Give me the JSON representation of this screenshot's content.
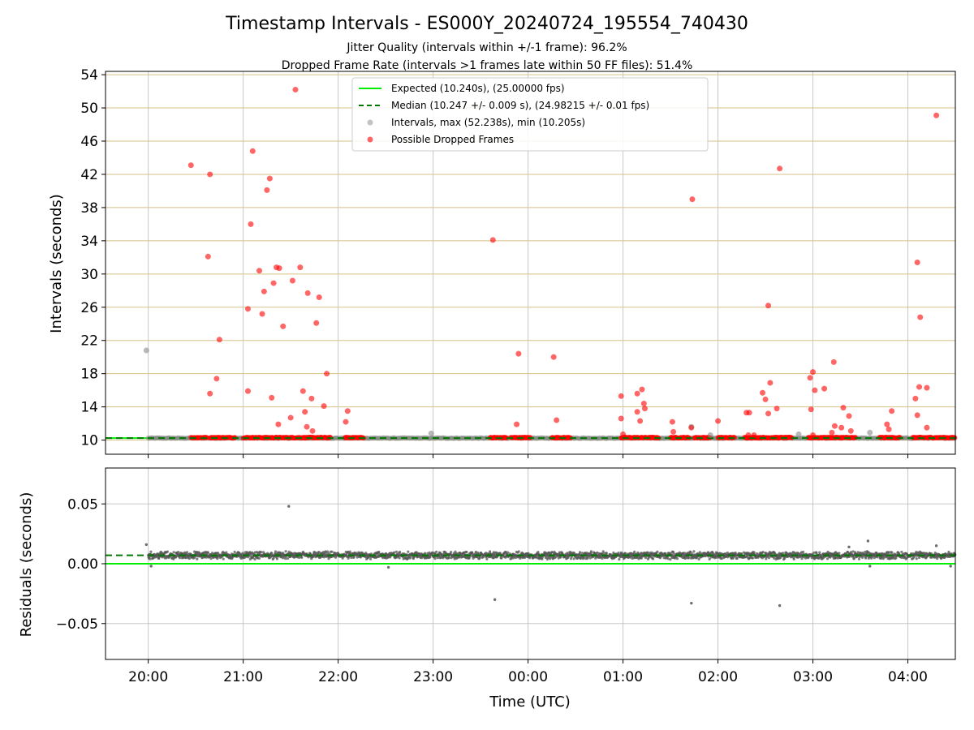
{
  "chart_data": {
    "type": "scatter",
    "title": "Timestamp Intervals - ES000Y_20240724_195554_740430",
    "subtitles": [
      "Jitter Quality (intervals within +/-1 frame): 96.2%",
      "Dropped Frame Rate (intervals >1 frames late within 50 FF files): 51.4%"
    ],
    "xlabel": "Time (UTC)",
    "x_ticks": [
      "20:00",
      "21:00",
      "22:00",
      "23:00",
      "00:00",
      "01:00",
      "02:00",
      "03:00",
      "04:00"
    ],
    "x_range_hours": [
      19.55,
      28.5
    ],
    "grid": true,
    "legend_position": "top-center",
    "panels": [
      {
        "name": "intervals",
        "ylabel": "Intervals (seconds)",
        "y_ticks": [
          "10",
          "14",
          "18",
          "22",
          "26",
          "30",
          "34",
          "38",
          "42",
          "46",
          "50",
          "54"
        ],
        "ylim": [
          8.3,
          54.4
        ],
        "legend": [
          {
            "label": "Expected (10.240s), (25.00000 fps)",
            "kind": "line",
            "color": "#00ee00",
            "style": "solid"
          },
          {
            "label": "Median (10.247 +/- 0.009 s), (24.98215 +/- 0.01 fps)",
            "kind": "line",
            "color": "#007700",
            "style": "dashed"
          },
          {
            "label": "Intervals, max (52.238s), min (10.205s)",
            "kind": "marker",
            "color": "#999999"
          },
          {
            "label": "Possible Dropped Frames",
            "kind": "marker",
            "color": "#ff0000"
          }
        ],
        "expected_value": 10.24,
        "median_value": 10.247,
        "baseline_segments": [
          [
            20.0,
            28.5
          ]
        ],
        "dropped_bands": [
          [
            20.45,
            20.62
          ],
          [
            20.65,
            20.92
          ],
          [
            21.0,
            21.92
          ],
          [
            22.07,
            22.27
          ],
          [
            23.6,
            23.78
          ],
          [
            23.82,
            24.03
          ],
          [
            24.25,
            24.45
          ],
          [
            24.98,
            25.38
          ],
          [
            25.5,
            25.7
          ],
          [
            25.75,
            25.92
          ],
          [
            26.0,
            26.18
          ],
          [
            26.28,
            26.78
          ],
          [
            26.95,
            27.45
          ],
          [
            27.7,
            27.92
          ],
          [
            28.05,
            28.5
          ]
        ],
        "gray_points": [
          [
            19.98,
            20.8
          ],
          [
            22.98,
            10.8
          ],
          [
            25.72,
            11.6
          ],
          [
            25.92,
            10.6
          ],
          [
            26.85,
            10.7
          ],
          [
            27.6,
            10.9
          ]
        ],
        "dropped_points": [
          [
            20.45,
            43.1
          ],
          [
            20.65,
            42.0
          ],
          [
            20.63,
            32.1
          ],
          [
            20.65,
            15.6
          ],
          [
            20.72,
            17.4
          ],
          [
            20.75,
            22.1
          ],
          [
            21.05,
            25.8
          ],
          [
            21.05,
            15.9
          ],
          [
            21.08,
            36.0
          ],
          [
            21.1,
            44.8
          ],
          [
            21.17,
            30.4
          ],
          [
            21.2,
            25.2
          ],
          [
            21.22,
            27.9
          ],
          [
            21.25,
            40.1
          ],
          [
            21.28,
            41.5
          ],
          [
            21.3,
            15.1
          ],
          [
            21.32,
            28.9
          ],
          [
            21.35,
            30.8
          ],
          [
            21.37,
            11.9
          ],
          [
            21.38,
            30.7
          ],
          [
            21.42,
            23.7
          ],
          [
            21.5,
            12.7
          ],
          [
            21.52,
            29.2
          ],
          [
            21.55,
            52.2
          ],
          [
            21.6,
            30.8
          ],
          [
            21.63,
            15.9
          ],
          [
            21.65,
            13.4
          ],
          [
            21.67,
            11.6
          ],
          [
            21.68,
            27.7
          ],
          [
            21.72,
            15.0
          ],
          [
            21.73,
            11.1
          ],
          [
            21.77,
            24.1
          ],
          [
            21.8,
            27.2
          ],
          [
            21.85,
            14.1
          ],
          [
            21.88,
            18.0
          ],
          [
            22.08,
            12.2
          ],
          [
            22.1,
            13.5
          ],
          [
            23.63,
            34.1
          ],
          [
            23.88,
            11.9
          ],
          [
            23.9,
            20.4
          ],
          [
            24.27,
            20.0
          ],
          [
            24.3,
            12.4
          ],
          [
            24.98,
            15.3
          ],
          [
            24.98,
            12.6
          ],
          [
            25.0,
            10.7
          ],
          [
            25.15,
            15.6
          ],
          [
            25.15,
            13.4
          ],
          [
            25.18,
            12.3
          ],
          [
            25.2,
            16.1
          ],
          [
            25.22,
            14.4
          ],
          [
            25.23,
            13.8
          ],
          [
            25.52,
            12.2
          ],
          [
            25.53,
            11.0
          ],
          [
            25.72,
            11.5
          ],
          [
            25.73,
            39.0
          ],
          [
            26.0,
            12.3
          ],
          [
            26.3,
            13.3
          ],
          [
            26.33,
            13.3
          ],
          [
            26.32,
            10.6
          ],
          [
            26.38,
            10.6
          ],
          [
            26.47,
            15.7
          ],
          [
            26.5,
            14.9
          ],
          [
            26.53,
            26.2
          ],
          [
            26.53,
            13.2
          ],
          [
            26.55,
            16.9
          ],
          [
            26.62,
            13.8
          ],
          [
            26.65,
            42.7
          ],
          [
            26.97,
            17.5
          ],
          [
            26.98,
            13.7
          ],
          [
            27.0,
            18.2
          ],
          [
            27.02,
            16.0
          ],
          [
            27.0,
            10.6
          ],
          [
            27.12,
            16.2
          ],
          [
            27.2,
            10.9
          ],
          [
            27.22,
            19.4
          ],
          [
            27.23,
            11.7
          ],
          [
            27.3,
            11.5
          ],
          [
            27.32,
            13.9
          ],
          [
            27.38,
            12.9
          ],
          [
            27.4,
            11.1
          ],
          [
            27.78,
            11.9
          ],
          [
            27.8,
            11.3
          ],
          [
            27.83,
            13.5
          ],
          [
            28.08,
            15.0
          ],
          [
            28.1,
            13.0
          ],
          [
            28.1,
            31.4
          ],
          [
            28.12,
            16.4
          ],
          [
            28.13,
            24.8
          ],
          [
            28.2,
            11.5
          ],
          [
            28.2,
            16.3
          ],
          [
            28.3,
            49.1
          ]
        ]
      },
      {
        "name": "residuals",
        "ylabel": "Residuals (seconds)",
        "y_ticks": [
          "0.05",
          "0.00",
          "−0.05"
        ],
        "ylim": [
          -0.08,
          0.08
        ],
        "expected_value": 0.0,
        "median_value": 0.007,
        "baseline_mean": 0.007,
        "baseline_spread": 0.0035,
        "outliers": [
          [
            19.98,
            0.016
          ],
          [
            20.03,
            -0.002
          ],
          [
            21.48,
            0.048
          ],
          [
            22.53,
            -0.003
          ],
          [
            23.65,
            -0.03
          ],
          [
            25.72,
            -0.033
          ],
          [
            26.65,
            -0.035
          ],
          [
            27.38,
            0.014
          ],
          [
            27.58,
            0.019
          ],
          [
            27.6,
            -0.002
          ],
          [
            28.3,
            0.015
          ],
          [
            28.45,
            -0.002
          ]
        ]
      }
    ]
  }
}
